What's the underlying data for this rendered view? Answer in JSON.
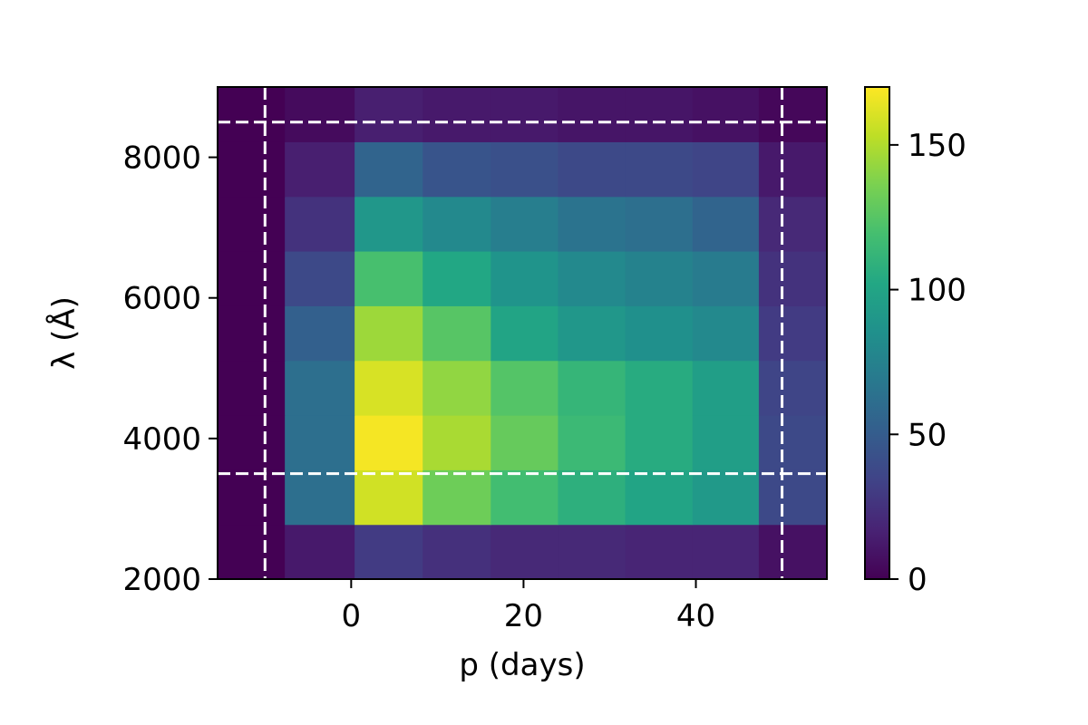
{
  "chart_data": {
    "type": "heatmap",
    "title": "",
    "xlabel": "p (days)",
    "ylabel": "λ (Å)",
    "xlim": [
      -15.5,
      55.2
    ],
    "ylim": [
      2000,
      9000
    ],
    "x_edges": [
      -15.5,
      -7.7,
      0.4,
      8.3,
      16.2,
      24.0,
      31.8,
      39.6,
      47.3,
      55.2
    ],
    "y_edges": [
      2000,
      2778,
      3556,
      4333,
      5111,
      5889,
      6667,
      7444,
      8222,
      9000
    ],
    "x_ticks": [
      0,
      20,
      40
    ],
    "x_tick_labels": [
      "0",
      "20",
      "40"
    ],
    "y_ticks": [
      2000,
      4000,
      6000,
      8000
    ],
    "y_tick_labels": [
      "2000",
      "4000",
      "6000",
      "8000"
    ],
    "values": [
      [
        0,
        12,
        30,
        24,
        20,
        20,
        18,
        18,
        8
      ],
      [
        0,
        62,
        158,
        132,
        118,
        108,
        100,
        92,
        38
      ],
      [
        0,
        62,
        168,
        148,
        130,
        115,
        105,
        95,
        38
      ],
      [
        0,
        62,
        160,
        142,
        124,
        112,
        105,
        95,
        35
      ],
      [
        0,
        52,
        145,
        125,
        100,
        90,
        85,
        80,
        30
      ],
      [
        0,
        38,
        120,
        102,
        88,
        80,
        75,
        70,
        25
      ],
      [
        0,
        25,
        90,
        80,
        72,
        65,
        62,
        55,
        20
      ],
      [
        0,
        15,
        55,
        45,
        42,
        38,
        38,
        35,
        12
      ],
      [
        0,
        5,
        15,
        12,
        12,
        10,
        10,
        8,
        3
      ]
    ],
    "colormap": "viridis",
    "colorbar": {
      "range": [
        0,
        170
      ],
      "ticks": [
        0,
        50,
        100,
        150
      ],
      "tick_labels": [
        "0",
        "50",
        "100",
        "150"
      ]
    },
    "reference_lines": {
      "color": "#ffffff",
      "style": "dashed",
      "vertical_x": [
        -10,
        50
      ],
      "horizontal_y": [
        3500,
        8500
      ]
    },
    "grid": false,
    "legend": "none"
  }
}
